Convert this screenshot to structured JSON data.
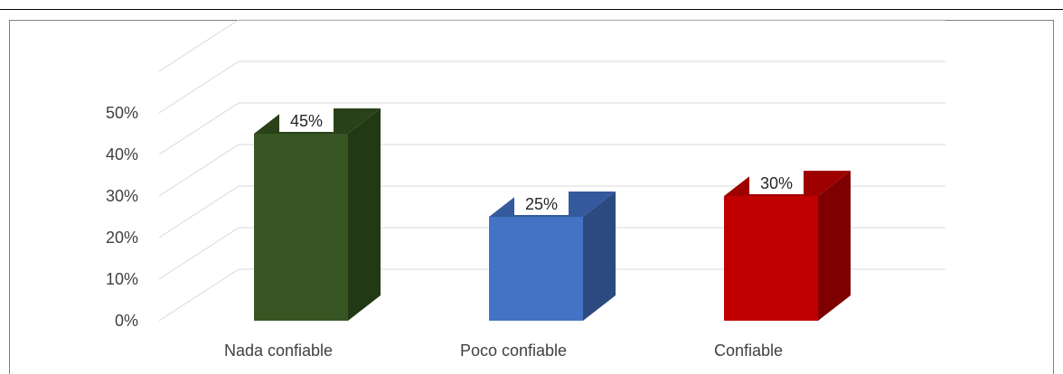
{
  "chart_data": {
    "type": "bar",
    "style": "3d-column",
    "categories": [
      "Nada confiable",
      "Poco confiable",
      "Confiable"
    ],
    "values": [
      45,
      25,
      30
    ],
    "data_labels": [
      "45%",
      "25%",
      "30%"
    ],
    "colors": [
      "#375623",
      "#4472c4",
      "#c00000"
    ],
    "side_colors": [
      "#233815",
      "#2c4a80",
      "#7f0000"
    ],
    "top_colors": [
      "#2a4119",
      "#34599c",
      "#9e0000"
    ],
    "yticks": [
      "0%",
      "10%",
      "20%",
      "30%",
      "40%",
      "50%"
    ],
    "ylim": [
      0,
      50
    ],
    "grid": true,
    "legend": "none"
  }
}
